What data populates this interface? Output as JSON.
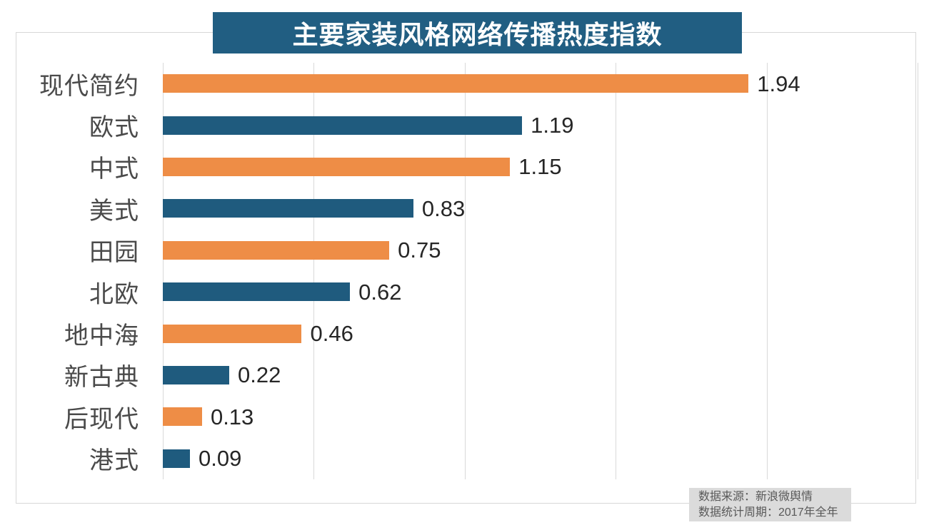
{
  "title": "主要家装风格网络传播热度指数",
  "chart_data": {
    "type": "bar",
    "orientation": "horizontal",
    "title": "主要家装风格网络传播热度指数",
    "categories": [
      "现代简约",
      "欧式",
      "中式",
      "美式",
      "田园",
      "北欧",
      "地中海",
      "新古典",
      "后现代",
      "港式"
    ],
    "values": [
      1.94,
      1.19,
      1.15,
      0.83,
      0.75,
      0.62,
      0.46,
      0.22,
      0.13,
      0.09
    ],
    "value_labels": [
      "1.94",
      "1.19",
      "1.15",
      "0.83",
      "0.75",
      "0.62",
      "0.46",
      "0.22",
      "0.13",
      "0.09"
    ],
    "xlim": [
      0,
      2.5
    ],
    "gridline_interval": 0.5,
    "grid": true,
    "legend": "none",
    "bar_colors_alternate": [
      "#ee8d46",
      "#1f5b7e"
    ]
  },
  "footer": {
    "source": "数据来源：新浪微舆情",
    "period": "数据统计周期：2017年全年"
  },
  "colors": {
    "title_bg": "#215e82",
    "title_text": "#ffffff",
    "bar_orange": "#ee8d46",
    "bar_teal": "#1f5b7e",
    "grid": "#d9d9d9",
    "frame": "#d7d7d7",
    "category_text": "#4a4a4a",
    "value_text": "#262626",
    "footer_bg": "#dbdbdb",
    "footer_text": "#595959"
  }
}
